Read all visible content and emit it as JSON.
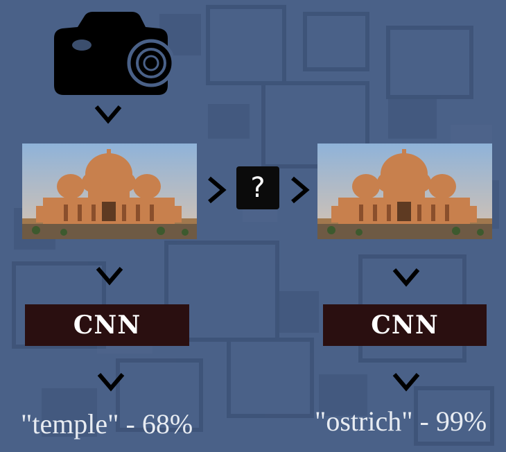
{
  "diagram": {
    "left_column": {
      "model_label": "CNN",
      "prediction": "\"temple\" - 68%"
    },
    "right_column": {
      "model_label": "CNN",
      "prediction": "\"ostrich\" - 99%"
    },
    "perturbation_symbol": "?"
  },
  "colors": {
    "background": "#4a6188",
    "cnn_box": "#2a0f10",
    "question_box": "#0b0b0b",
    "chevron": "#000000",
    "text": "#e8ecf2"
  },
  "icons": [
    "camera-icon",
    "chevron-down-icon",
    "chevron-right-icon",
    "temple-photo"
  ]
}
